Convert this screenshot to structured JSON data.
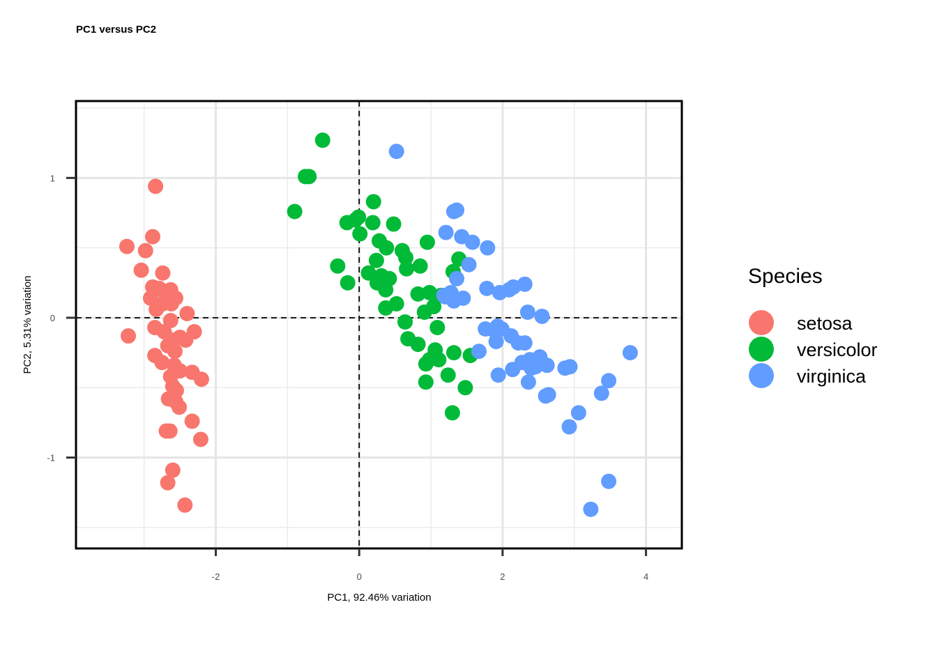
{
  "chart_data": {
    "type": "scatter",
    "title": "PC1 versus PC2",
    "xlabel": "PC1, 92.46% variation",
    "ylabel": "PC2, 5.31% variation",
    "xlim": [
      -3.95,
      4.5
    ],
    "ylim": [
      -1.65,
      1.55
    ],
    "xticks": [
      -2,
      0,
      2,
      4
    ],
    "yticks": [
      -1,
      0,
      1
    ],
    "xtick_labels": [
      "-2",
      "0",
      "2",
      "4"
    ],
    "ytick_labels": [
      "-1",
      "0",
      "1"
    ],
    "reference_lines": {
      "x": 0,
      "y": 0,
      "style": "dashed"
    },
    "grid": true,
    "legend": {
      "title": "Species",
      "position": "right"
    },
    "series": [
      {
        "name": "setosa",
        "color": "#F8766D",
        "points": [
          [
            -2.84,
            0.94
          ],
          [
            -2.88,
            0.58
          ],
          [
            -3.24,
            0.51
          ],
          [
            -2.98,
            0.48
          ],
          [
            -3.04,
            0.34
          ],
          [
            -2.74,
            0.32
          ],
          [
            -2.79,
            0.21
          ],
          [
            -2.63,
            0.2
          ],
          [
            -2.88,
            0.22
          ],
          [
            -2.7,
            0.17
          ],
          [
            -2.91,
            0.14
          ],
          [
            -2.56,
            0.14
          ],
          [
            -2.74,
            0.1
          ],
          [
            -2.62,
            0.1
          ],
          [
            -2.83,
            0.06
          ],
          [
            -2.4,
            0.03
          ],
          [
            -2.63,
            -0.02
          ],
          [
            -2.85,
            -0.07
          ],
          [
            -2.72,
            -0.1
          ],
          [
            -2.3,
            -0.1
          ],
          [
            -2.5,
            -0.14
          ],
          [
            -2.6,
            -0.16
          ],
          [
            -2.42,
            -0.16
          ],
          [
            -3.22,
            -0.13
          ],
          [
            -2.67,
            -0.2
          ],
          [
            -2.57,
            -0.24
          ],
          [
            -2.85,
            -0.27
          ],
          [
            -2.75,
            -0.32
          ],
          [
            -2.58,
            -0.34
          ],
          [
            -2.5,
            -0.38
          ],
          [
            -2.33,
            -0.39
          ],
          [
            -2.63,
            -0.42
          ],
          [
            -2.2,
            -0.44
          ],
          [
            -2.6,
            -0.49
          ],
          [
            -2.55,
            -0.52
          ],
          [
            -2.66,
            -0.58
          ],
          [
            -2.56,
            -0.6
          ],
          [
            -2.51,
            -0.64
          ],
          [
            -2.33,
            -0.74
          ],
          [
            -2.69,
            -0.81
          ],
          [
            -2.64,
            -0.81
          ],
          [
            -2.21,
            -0.87
          ],
          [
            -2.6,
            -1.09
          ],
          [
            -2.67,
            -1.18
          ],
          [
            -2.43,
            -1.34
          ]
        ]
      },
      {
        "name": "versicolor",
        "color": "#00BA38",
        "points": [
          [
            -0.51,
            1.27
          ],
          [
            -0.75,
            1.01
          ],
          [
            -0.7,
            1.01
          ],
          [
            -0.9,
            0.76
          ],
          [
            0.2,
            0.83
          ],
          [
            -0.17,
            0.68
          ],
          [
            -0.05,
            0.7
          ],
          [
            -0.01,
            0.72
          ],
          [
            0.19,
            0.68
          ],
          [
            0.48,
            0.67
          ],
          [
            0.01,
            0.6
          ],
          [
            0.28,
            0.55
          ],
          [
            0.38,
            0.5
          ],
          [
            0.95,
            0.54
          ],
          [
            0.6,
            0.48
          ],
          [
            0.65,
            0.43
          ],
          [
            0.24,
            0.41
          ],
          [
            1.39,
            0.42
          ],
          [
            0.85,
            0.37
          ],
          [
            0.66,
            0.35
          ],
          [
            -0.3,
            0.37
          ],
          [
            0.13,
            0.32
          ],
          [
            0.31,
            0.3
          ],
          [
            0.42,
            0.28
          ],
          [
            1.31,
            0.33
          ],
          [
            0.25,
            0.25
          ],
          [
            -0.16,
            0.25
          ],
          [
            0.37,
            0.2
          ],
          [
            0.98,
            0.18
          ],
          [
            0.82,
            0.17
          ],
          [
            1.14,
            0.16
          ],
          [
            0.52,
            0.1
          ],
          [
            0.37,
            0.07
          ],
          [
            0.91,
            0.04
          ],
          [
            1.04,
            0.08
          ],
          [
            0.64,
            -0.03
          ],
          [
            1.09,
            -0.07
          ],
          [
            0.68,
            -0.15
          ],
          [
            0.82,
            -0.19
          ],
          [
            1.06,
            -0.23
          ],
          [
            1.32,
            -0.25
          ],
          [
            1.55,
            -0.27
          ],
          [
            1.11,
            -0.3
          ],
          [
            0.93,
            -0.33
          ],
          [
            0.98,
            -0.3
          ],
          [
            1.24,
            -0.41
          ],
          [
            0.93,
            -0.46
          ],
          [
            1.48,
            -0.5
          ],
          [
            1.3,
            -0.68
          ]
        ]
      },
      {
        "name": "virginica",
        "color": "#619CFF",
        "points": [
          [
            0.52,
            1.19
          ],
          [
            1.32,
            0.76
          ],
          [
            1.36,
            0.77
          ],
          [
            1.21,
            0.61
          ],
          [
            1.43,
            0.58
          ],
          [
            1.58,
            0.54
          ],
          [
            1.79,
            0.5
          ],
          [
            1.53,
            0.38
          ],
          [
            1.78,
            0.21
          ],
          [
            1.96,
            0.18
          ],
          [
            2.09,
            0.2
          ],
          [
            2.15,
            0.22
          ],
          [
            2.31,
            0.24
          ],
          [
            1.36,
            0.28
          ],
          [
            1.18,
            0.16
          ],
          [
            1.28,
            0.18
          ],
          [
            1.45,
            0.14
          ],
          [
            1.32,
            0.12
          ],
          [
            1.2,
            0.15
          ],
          [
            2.35,
            0.04
          ],
          [
            2.55,
            0.01
          ],
          [
            1.76,
            -0.08
          ],
          [
            1.88,
            -0.09
          ],
          [
            1.93,
            -0.06
          ],
          [
            1.99,
            -0.08
          ],
          [
            1.91,
            -0.17
          ],
          [
            2.12,
            -0.13
          ],
          [
            2.22,
            -0.18
          ],
          [
            2.31,
            -0.18
          ],
          [
            1.67,
            -0.24
          ],
          [
            2.27,
            -0.32
          ],
          [
            2.38,
            -0.3
          ],
          [
            2.52,
            -0.28
          ],
          [
            2.46,
            -0.35
          ],
          [
            2.62,
            -0.34
          ],
          [
            2.14,
            -0.37
          ],
          [
            1.94,
            -0.41
          ],
          [
            2.36,
            -0.46
          ],
          [
            2.87,
            -0.36
          ],
          [
            2.94,
            -0.35
          ],
          [
            3.78,
            -0.25
          ],
          [
            3.48,
            -0.45
          ],
          [
            3.38,
            -0.54
          ],
          [
            2.64,
            -0.55
          ],
          [
            3.06,
            -0.68
          ],
          [
            2.93,
            -0.78
          ],
          [
            3.48,
            -1.17
          ],
          [
            3.23,
            -1.37
          ],
          [
            2.6,
            -0.56
          ],
          [
            2.4,
            -0.36
          ]
        ]
      }
    ]
  }
}
